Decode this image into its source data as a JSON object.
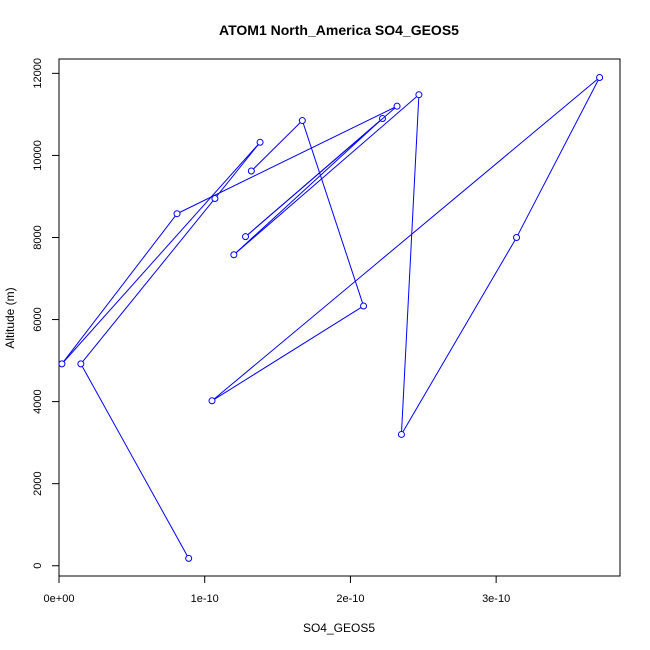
{
  "chart_data": {
    "type": "line",
    "title": "ATOM1 North_America SO4_GEOS5",
    "xlabel": "SO4_GEOS5",
    "ylabel": "Altitude (m)",
    "xlim": [
      0,
      3.85e-10
    ],
    "ylim": [
      -250,
      12350
    ],
    "x_ticks": [
      {
        "value": 0,
        "label": "0e+00"
      },
      {
        "value": 1e-10,
        "label": "1e-10"
      },
      {
        "value": 2e-10,
        "label": "2e-10"
      },
      {
        "value": 3e-10,
        "label": "3e-10"
      }
    ],
    "y_ticks": [
      {
        "value": 0,
        "label": "0"
      },
      {
        "value": 2000,
        "label": "2000"
      },
      {
        "value": 4000,
        "label": "4000"
      },
      {
        "value": 6000,
        "label": "6000"
      },
      {
        "value": 8000,
        "label": "8000"
      },
      {
        "value": 10000,
        "label": "10000"
      },
      {
        "value": 12000,
        "label": "12000"
      }
    ],
    "grid": false,
    "color": "#0000ff",
    "x": [
      8.9e-11,
      1.5e-11,
      1.07e-10,
      1.38e-10,
      2e-12,
      8.1e-11,
      2.32e-10,
      1.28e-10,
      2.22e-10,
      1.2e-10,
      2.47e-10,
      2.35e-10,
      3.14e-10,
      3.71e-10,
      1.05e-10,
      2.09e-10,
      1.67e-10,
      1.32e-10
    ],
    "y": [
      180,
      4920,
      8950,
      10320,
      4920,
      8580,
      11200,
      8020,
      10900,
      7580,
      11480,
      3200,
      8000,
      11900,
      4020,
      6330,
      10850,
      9620
    ]
  }
}
